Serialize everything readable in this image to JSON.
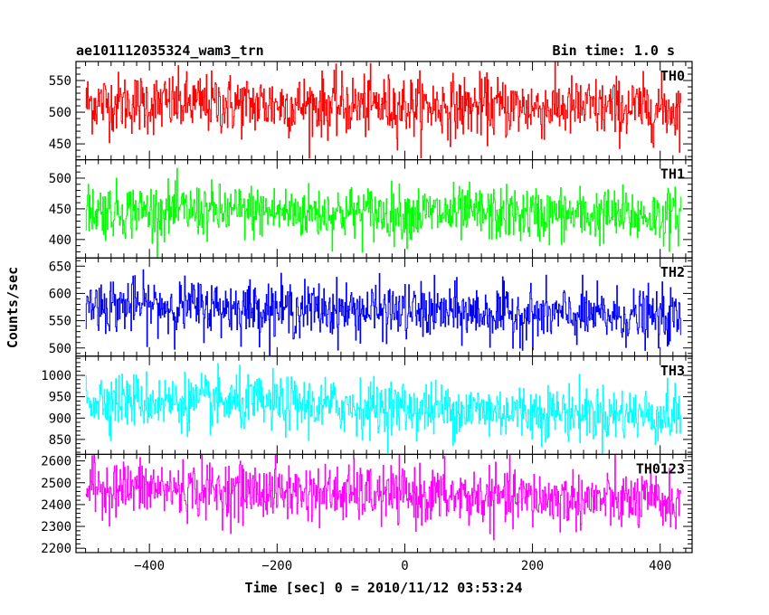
{
  "chart_data": {
    "type": "line",
    "title": "ae101112035324_wam3_trn",
    "bin_time": "Bin time: 1.0 s",
    "xlabel": "Time [sec] 0 = 2010/11/12 03:53:24",
    "ylabel": "Counts/sec",
    "xlim": [
      -515,
      450
    ],
    "xticks": [
      -400,
      -200,
      0,
      200,
      400
    ],
    "xtick_labels": [
      "−400",
      "−200",
      "0",
      "200",
      "400"
    ],
    "x_start": -500,
    "x_end": 432,
    "bin": 1.0,
    "panels": [
      {
        "name": "TH0",
        "color": "#ff0000",
        "ylim": [
          425,
          580
        ],
        "yticks": [
          450,
          500,
          550
        ],
        "mean": 510,
        "noise": 24,
        "start_level": 515,
        "end_level": 505
      },
      {
        "name": "TH1",
        "color": "#00ff00",
        "ylim": [
          370,
          530
        ],
        "yticks": [
          400,
          450,
          500
        ],
        "mean": 440,
        "noise": 22,
        "start_level": 448,
        "end_level": 438
      },
      {
        "name": "TH2",
        "color": "#0000ff",
        "ylim": [
          485,
          665
        ],
        "yticks": [
          500,
          550,
          600,
          650
        ],
        "mean": 565,
        "noise": 25,
        "start_level": 580,
        "end_level": 555
      },
      {
        "name": "TH3",
        "color": "#00ffff",
        "ylim": [
          815,
          1045
        ],
        "yticks": [
          850,
          900,
          950,
          1000
        ],
        "mean": 920,
        "noise": 32,
        "start_level": 945,
        "end_level": 905
      },
      {
        "name": "TH0123",
        "color": "#ff00ff",
        "ylim": [
          2180,
          2630
        ],
        "yticks": [
          2200,
          2300,
          2400,
          2500,
          2600
        ],
        "mean": 2435,
        "noise": 65,
        "start_level": 2480,
        "end_level": 2410
      }
    ]
  }
}
